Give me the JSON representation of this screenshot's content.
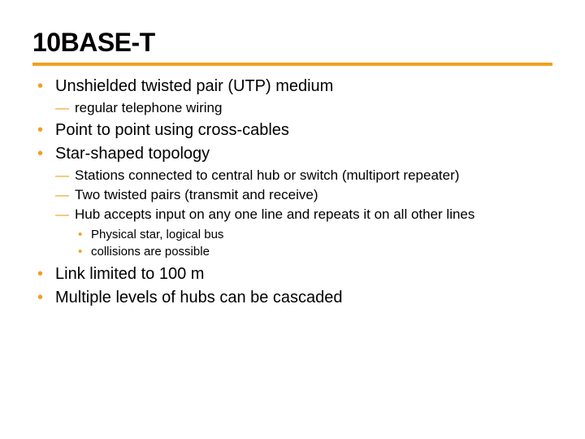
{
  "colors": {
    "accent": "#f0a020",
    "text": "#000000",
    "background": "#ffffff"
  },
  "typography": {
    "title_fontsize": 32,
    "lvl1_fontsize": 20,
    "lvl2_fontsize": 17,
    "lvl3_fontsize": 15,
    "title_family": "Arial",
    "body_family": "Verdana"
  },
  "title": "10BASE-T",
  "bullets": {
    "b1": "Unshielded twisted pair (UTP) medium",
    "b1_1": "regular telephone wiring",
    "b2": "Point to point using cross-cables",
    "b3": "Star-shaped topology",
    "b3_1": "Stations connected to central hub or switch (multiport repeater)",
    "b3_2": "Two twisted pairs (transmit and receive)",
    "b3_3": "Hub accepts input on any one line and repeats it on all other lines",
    "b3_3_1": "Physical star, logical bus",
    "b3_3_2": "collisions are possible",
    "b4": "Link limited to 100 m",
    "b5": "Multiple levels of hubs can be cascaded"
  }
}
